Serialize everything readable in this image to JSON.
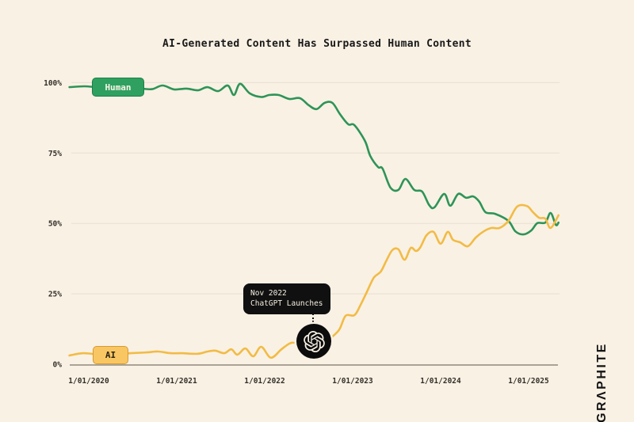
{
  "title": "AI-Generated Content Has Surpassed Human Content",
  "branding": {
    "logo_text": "GRΛPHITE"
  },
  "annotation": {
    "line1": "Nov 2022",
    "line2": "ChatGPT Launches",
    "marker_icon": "openai-logo"
  },
  "colors": {
    "background": "#f9f1e4",
    "human_green": "#2d9457",
    "ai_yellow": "#f2bb45",
    "grid": "#e7dfcf",
    "axis": "#8f897c",
    "tick_text": "#33302a",
    "annotation_bg": "#101010"
  },
  "chart_data": {
    "type": "line",
    "title": "AI-Generated Content Has Surpassed Human Content",
    "xlabel": "",
    "ylabel": "",
    "grid": true,
    "legend_position": "inline-badges-on-lines",
    "x_axis": {
      "range_years": [
        2019.78,
        2025.35
      ],
      "ticks": [
        {
          "label": "1/01/2020",
          "year": 2020
        },
        {
          "label": "1/01/2021",
          "year": 2021
        },
        {
          "label": "1/01/2022",
          "year": 2022
        },
        {
          "label": "1/01/2023",
          "year": 2023
        },
        {
          "label": "1/01/2024",
          "year": 2024
        },
        {
          "label": "1/01/2025",
          "year": 2025
        }
      ]
    },
    "y_axis": {
      "range": [
        0,
        100
      ],
      "unit": "%",
      "ticks": [
        {
          "label": "100%",
          "value": 100
        },
        {
          "label": "75%",
          "value": 75
        },
        {
          "label": "50%",
          "value": 50
        },
        {
          "label": "25%",
          "value": 25
        },
        {
          "label": "0%",
          "value": 0
        }
      ]
    },
    "annotation": {
      "text": [
        "Nov 2022",
        "ChatGPT Launches"
      ],
      "x_year": 2022.57,
      "series": "AI",
      "marker": "openai-logo"
    },
    "series": [
      {
        "name": "Human",
        "color": "#2d9457",
        "points": [
          [
            2019.78,
            98.4
          ],
          [
            2019.95,
            98.7
          ],
          [
            2020.15,
            98.3
          ],
          [
            2020.42,
            98.5
          ],
          [
            2020.6,
            97.9
          ],
          [
            2020.72,
            97.7
          ],
          [
            2020.84,
            99.0
          ],
          [
            2020.97,
            97.6
          ],
          [
            2021.11,
            97.9
          ],
          [
            2021.24,
            97.3
          ],
          [
            2021.35,
            98.4
          ],
          [
            2021.47,
            97.0
          ],
          [
            2021.58,
            99.0
          ],
          [
            2021.65,
            95.6
          ],
          [
            2021.72,
            99.6
          ],
          [
            2021.83,
            96.2
          ],
          [
            2021.96,
            94.9
          ],
          [
            2022.05,
            95.6
          ],
          [
            2022.16,
            95.6
          ],
          [
            2022.28,
            94.2
          ],
          [
            2022.4,
            94.5
          ],
          [
            2022.5,
            92.0
          ],
          [
            2022.59,
            90.6
          ],
          [
            2022.68,
            92.8
          ],
          [
            2022.77,
            92.8
          ],
          [
            2022.86,
            88.6
          ],
          [
            2022.95,
            85.2
          ],
          [
            2023.02,
            84.9
          ],
          [
            2023.14,
            79.3
          ],
          [
            2023.2,
            74.0
          ],
          [
            2023.29,
            70.0
          ],
          [
            2023.34,
            69.5
          ],
          [
            2023.43,
            62.7
          ],
          [
            2023.52,
            61.9
          ],
          [
            2023.6,
            65.8
          ],
          [
            2023.7,
            61.9
          ],
          [
            2023.79,
            61.3
          ],
          [
            2023.87,
            56.5
          ],
          [
            2023.93,
            55.7
          ],
          [
            2024.04,
            60.5
          ],
          [
            2024.11,
            56.3
          ],
          [
            2024.2,
            60.5
          ],
          [
            2024.29,
            59.1
          ],
          [
            2024.37,
            59.6
          ],
          [
            2024.44,
            57.7
          ],
          [
            2024.51,
            54.0
          ],
          [
            2024.62,
            53.4
          ],
          [
            2024.77,
            50.9
          ],
          [
            2024.85,
            47.2
          ],
          [
            2024.94,
            46.1
          ],
          [
            2025.03,
            47.5
          ],
          [
            2025.1,
            50.1
          ],
          [
            2025.19,
            50.3
          ],
          [
            2025.25,
            53.7
          ],
          [
            2025.31,
            49.5
          ],
          [
            2025.34,
            50.3
          ]
        ]
      },
      {
        "name": "AI",
        "color": "#f2bb45",
        "points": [
          [
            2019.78,
            3.1
          ],
          [
            2019.94,
            3.9
          ],
          [
            2020.16,
            3.4
          ],
          [
            2020.48,
            3.9
          ],
          [
            2020.66,
            4.2
          ],
          [
            2020.79,
            4.5
          ],
          [
            2020.93,
            3.9
          ],
          [
            2021.06,
            3.9
          ],
          [
            2021.24,
            3.7
          ],
          [
            2021.35,
            4.5
          ],
          [
            2021.44,
            4.8
          ],
          [
            2021.54,
            3.9
          ],
          [
            2021.62,
            5.3
          ],
          [
            2021.69,
            3.4
          ],
          [
            2021.78,
            5.6
          ],
          [
            2021.87,
            2.8
          ],
          [
            2021.96,
            6.2
          ],
          [
            2022.07,
            2.3
          ],
          [
            2022.19,
            5.3
          ],
          [
            2022.28,
            7.3
          ],
          [
            2022.34,
            7.6
          ],
          [
            2022.46,
            6.5
          ],
          [
            2022.57,
            6.2
          ],
          [
            2022.67,
            7.9
          ],
          [
            2022.76,
            9.6
          ],
          [
            2022.85,
            12.4
          ],
          [
            2022.92,
            17.2
          ],
          [
            2023.02,
            17.4
          ],
          [
            2023.09,
            21.1
          ],
          [
            2023.16,
            25.6
          ],
          [
            2023.24,
            30.7
          ],
          [
            2023.32,
            32.9
          ],
          [
            2023.38,
            36.6
          ],
          [
            2023.45,
            40.5
          ],
          [
            2023.52,
            40.8
          ],
          [
            2023.59,
            37.1
          ],
          [
            2023.66,
            41.3
          ],
          [
            2023.72,
            40.2
          ],
          [
            2023.77,
            41.6
          ],
          [
            2023.84,
            45.8
          ],
          [
            2023.92,
            47.0
          ],
          [
            2024.0,
            42.8
          ],
          [
            2024.08,
            47.0
          ],
          [
            2024.14,
            44.2
          ],
          [
            2024.22,
            43.3
          ],
          [
            2024.31,
            41.9
          ],
          [
            2024.4,
            45.0
          ],
          [
            2024.49,
            47.2
          ],
          [
            2024.58,
            48.4
          ],
          [
            2024.67,
            48.4
          ],
          [
            2024.77,
            50.9
          ],
          [
            2024.87,
            56.0
          ],
          [
            2024.98,
            56.2
          ],
          [
            2025.05,
            54.0
          ],
          [
            2025.12,
            52.0
          ],
          [
            2025.19,
            51.7
          ],
          [
            2025.25,
            48.4
          ],
          [
            2025.34,
            52.9
          ]
        ]
      }
    ]
  }
}
